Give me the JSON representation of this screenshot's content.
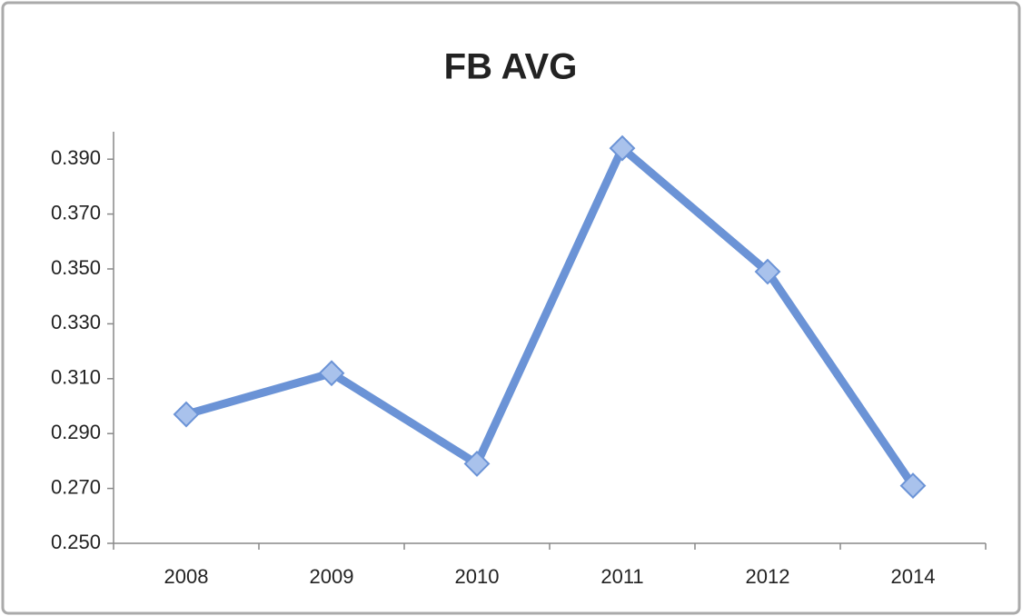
{
  "chart_data": {
    "type": "line",
    "title": "FB AVG",
    "categories": [
      "2008",
      "2009",
      "2010",
      "2011",
      "2012",
      "2014"
    ],
    "series": [
      {
        "name": "FB AVG",
        "color": "#6b93d6",
        "values": [
          0.297,
          0.312,
          0.279,
          0.394,
          0.349,
          0.271
        ]
      }
    ],
    "ylim": [
      0.25,
      0.4
    ],
    "yticks": [
      {
        "value": 0.25,
        "label": "0.250"
      },
      {
        "value": 0.27,
        "label": "0.270"
      },
      {
        "value": 0.29,
        "label": "0.290"
      },
      {
        "value": 0.31,
        "label": "0.310"
      },
      {
        "value": 0.33,
        "label": "0.330"
      },
      {
        "value": 0.35,
        "label": "0.350"
      },
      {
        "value": 0.37,
        "label": "0.370"
      },
      {
        "value": 0.39,
        "label": "0.390"
      }
    ],
    "grid": false,
    "legend": false
  }
}
